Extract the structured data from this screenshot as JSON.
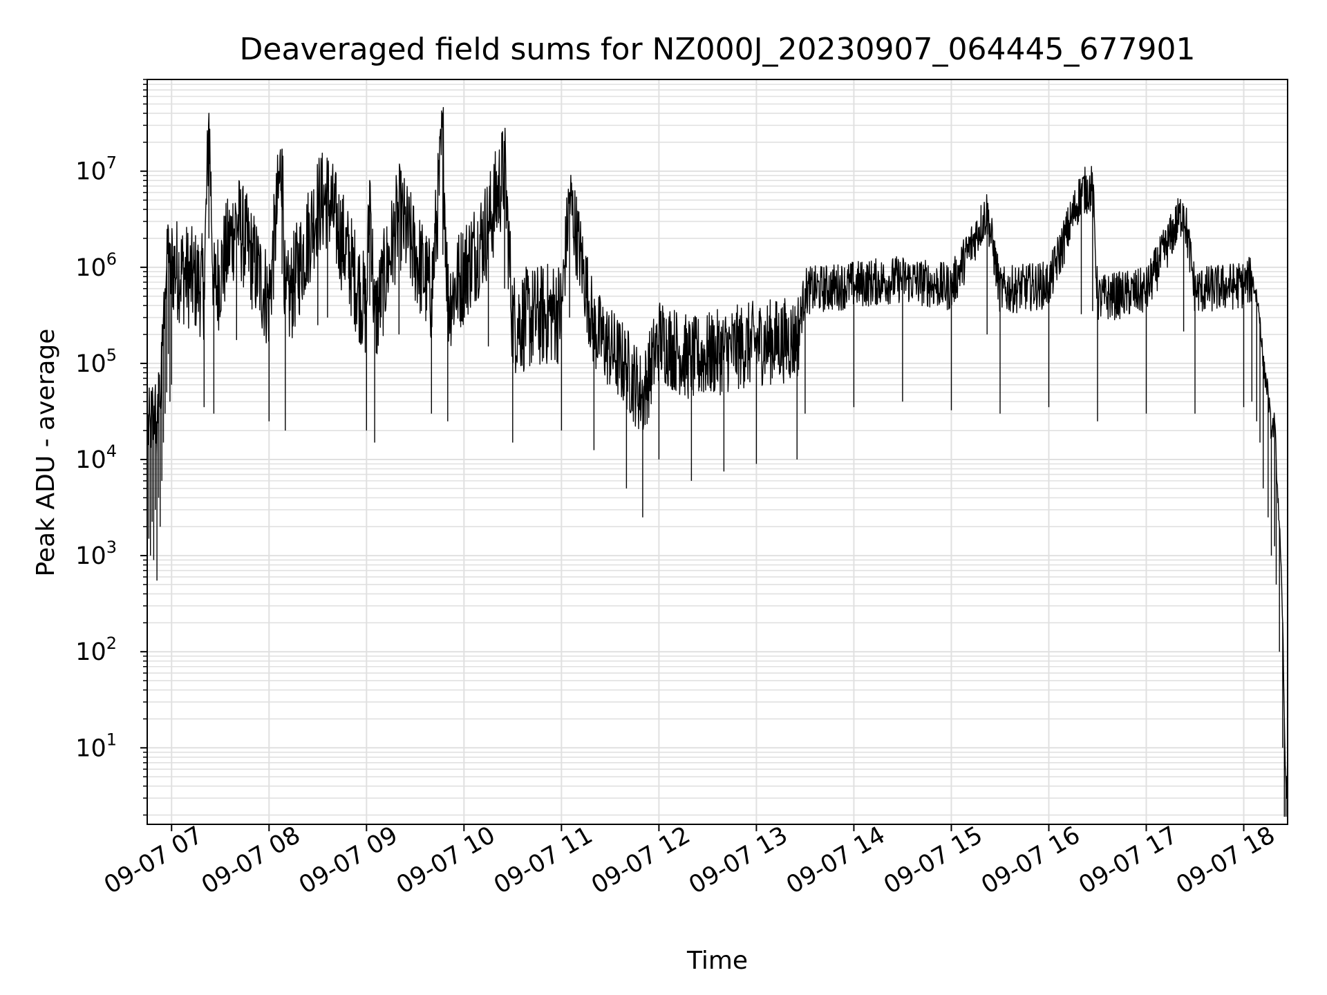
{
  "chart_data": {
    "type": "line",
    "title": "Deaveraged field sums for NZ000J_20230907_064445_677901",
    "xlabel": "Time",
    "ylabel": "Peak ADU - average",
    "yscale": "log",
    "xlim": [
      "2023-09-07 06:45",
      "2023-09-07 18:27"
    ],
    "ylim": [
      1.6,
      90000000
    ],
    "grid": true,
    "grid_color": "#e0e0e0",
    "line_color": "#000000",
    "x_ticks": [
      {
        "value": "2023-09-07 07:00",
        "label": "09-07 07"
      },
      {
        "value": "2023-09-07 08:00",
        "label": "09-07 08"
      },
      {
        "value": "2023-09-07 09:00",
        "label": "09-07 09"
      },
      {
        "value": "2023-09-07 10:00",
        "label": "09-07 10"
      },
      {
        "value": "2023-09-07 11:00",
        "label": "09-07 11"
      },
      {
        "value": "2023-09-07 12:00",
        "label": "09-07 12"
      },
      {
        "value": "2023-09-07 13:00",
        "label": "09-07 13"
      },
      {
        "value": "2023-09-07 14:00",
        "label": "09-07 14"
      },
      {
        "value": "2023-09-07 15:00",
        "label": "09-07 15"
      },
      {
        "value": "2023-09-07 16:00",
        "label": "09-07 16"
      },
      {
        "value": "2023-09-07 17:00",
        "label": "09-07 17"
      },
      {
        "value": "2023-09-07 18:00",
        "label": "09-07 18"
      }
    ],
    "y_ticks": [
      {
        "value": 10,
        "base": "10",
        "exp": "1"
      },
      {
        "value": 100,
        "base": "10",
        "exp": "2"
      },
      {
        "value": 1000,
        "base": "10",
        "exp": "3"
      },
      {
        "value": 10000,
        "base": "10",
        "exp": "4"
      },
      {
        "value": 100000,
        "base": "10",
        "exp": "5"
      },
      {
        "value": 1000000,
        "base": "10",
        "exp": "6"
      },
      {
        "value": 10000000,
        "base": "10",
        "exp": "7"
      }
    ],
    "series": [
      {
        "points": [
          [
            "2023-09-07 06:45",
            15000
          ],
          [
            "2023-09-07 06:46",
            30000
          ],
          [
            "2023-09-07 06:47",
            20000
          ],
          [
            "2023-09-07 06:48",
            45000
          ],
          [
            "2023-09-07 06:49",
            18000
          ],
          [
            "2023-09-07 06:50",
            60000
          ],
          [
            "2023-09-07 06:51",
            11000
          ],
          [
            "2023-09-07 06:52",
            80000
          ],
          [
            "2023-09-07 06:53",
            40000
          ],
          [
            "2023-09-07 06:54",
            120000
          ],
          [
            "2023-09-07 06:55",
            300000
          ],
          [
            "2023-09-07 06:56",
            600000
          ],
          [
            "2023-09-07 06:57",
            1000000
          ],
          [
            "2023-09-07 06:58",
            2500000
          ],
          [
            "2023-09-07 06:59",
            800000
          ],
          [
            "2023-09-07 07:00",
            1200000
          ],
          [
            "2023-09-07 07:20",
            700000
          ],
          [
            "2023-09-07 07:23",
            40000000
          ],
          [
            "2023-09-07 07:26",
            600000
          ],
          [
            "2023-09-07 07:40",
            3500000
          ],
          [
            "2023-09-07 08:00",
            500000
          ],
          [
            "2023-09-07 08:08",
            17000000
          ],
          [
            "2023-09-07 08:10",
            400000
          ],
          [
            "2023-09-07 08:30",
            5000000
          ],
          [
            "2023-09-07 08:36",
            6000000
          ],
          [
            "2023-09-07 09:00",
            400000
          ],
          [
            "2023-09-07 09:02",
            8000000
          ],
          [
            "2023-09-07 09:05",
            300000
          ],
          [
            "2023-09-07 09:20",
            4000000
          ],
          [
            "2023-09-07 09:40",
            600000
          ],
          [
            "2023-09-07 09:47",
            27000000
          ],
          [
            "2023-09-07 09:50",
            500000
          ],
          [
            "2023-09-07 10:15",
            3000000
          ],
          [
            "2023-09-07 10:25",
            12000000
          ],
          [
            "2023-09-07 10:30",
            300000
          ],
          [
            "2023-09-07 11:00",
            400000
          ],
          [
            "2023-09-07 11:05",
            6000000
          ],
          [
            "2023-09-07 11:20",
            250000
          ],
          [
            "2023-09-07 11:40",
            100000
          ],
          [
            "2023-09-07 11:50",
            50000
          ],
          [
            "2023-09-07 12:00",
            200000
          ],
          [
            "2023-09-07 12:20",
            120000
          ],
          [
            "2023-09-07 12:40",
            150000
          ],
          [
            "2023-09-07 13:00",
            180000
          ],
          [
            "2023-09-07 13:25",
            200000
          ],
          [
            "2023-09-07 13:30",
            600000
          ],
          [
            "2023-09-07 14:00",
            700000
          ],
          [
            "2023-09-07 14:30",
            800000
          ],
          [
            "2023-09-07 15:00",
            650000
          ],
          [
            "2023-09-07 15:22",
            4000000
          ],
          [
            "2023-09-07 15:30",
            600000
          ],
          [
            "2023-09-07 16:00",
            700000
          ],
          [
            "2023-09-07 16:20",
            6500000
          ],
          [
            "2023-09-07 16:27",
            7000000
          ],
          [
            "2023-09-07 16:30",
            500000
          ],
          [
            "2023-09-07 17:00",
            600000
          ],
          [
            "2023-09-07 17:23",
            4300000
          ],
          [
            "2023-09-07 17:30",
            600000
          ],
          [
            "2023-09-07 18:00",
            700000
          ],
          [
            "2023-09-07 18:05",
            800000
          ],
          [
            "2023-09-07 18:08",
            500000
          ],
          [
            "2023-09-07 18:10",
            300000
          ],
          [
            "2023-09-07 18:12",
            100000
          ],
          [
            "2023-09-07 18:15",
            50000
          ],
          [
            "2023-09-07 18:17",
            20000
          ],
          [
            "2023-09-07 18:19",
            25000
          ],
          [
            "2023-09-07 18:20",
            10000
          ],
          [
            "2023-09-07 18:22",
            2000
          ],
          [
            "2023-09-07 18:24",
            200
          ],
          [
            "2023-09-07 18:25",
            20
          ],
          [
            "2023-09-07 18:26",
            4
          ],
          [
            "2023-09-07 18:27",
            4
          ]
        ]
      }
    ]
  }
}
